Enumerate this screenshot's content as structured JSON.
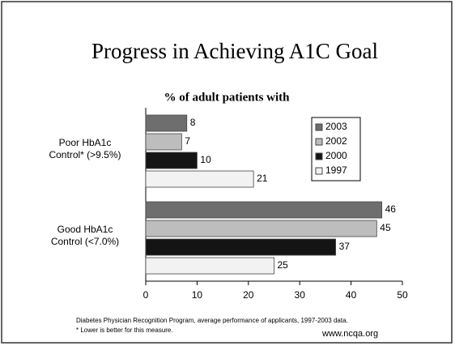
{
  "chart_data": {
    "type": "hbar",
    "title": "Progress in Achieving A1C Goal",
    "subtitle": "% of adult patients with",
    "categories": [
      "Poor HbA1c Control* (>9.5%)",
      "Good HbA1c Control (<7.0%)"
    ],
    "series": [
      {
        "name": "2003",
        "color": "#6e6e6e",
        "values": [
          8,
          46
        ]
      },
      {
        "name": "2002",
        "color": "#bdbdbd",
        "values": [
          7,
          45
        ]
      },
      {
        "name": "2000",
        "color": "#141414",
        "values": [
          10,
          37
        ]
      },
      {
        "name": "1997",
        "color": "#f2f2f2",
        "values": [
          21,
          25
        ]
      }
    ],
    "xlim": [
      0,
      50
    ],
    "xticks": [
      0,
      10,
      20,
      30,
      40,
      50
    ],
    "legend": "upper right",
    "footnotes": [
      "Diabetes Physician Recognition Program, average performance of applicants, 1997-2003 data.",
      "* Lower is better for this measure."
    ],
    "source": "www.ncqa.org"
  }
}
